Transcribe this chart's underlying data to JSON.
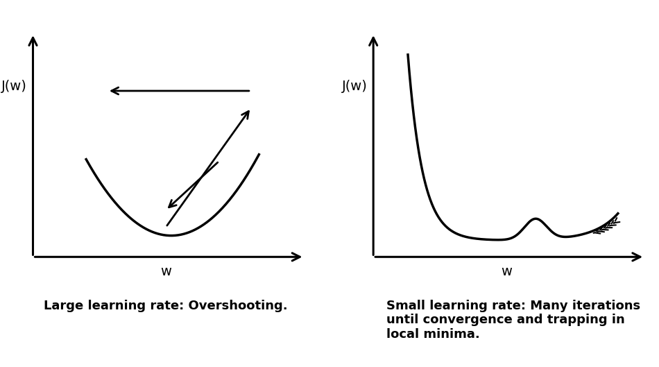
{
  "fig_width": 9.5,
  "fig_height": 5.29,
  "background_color": "#ffffff",
  "left_title": "Large learning rate: Overshooting.",
  "right_title": "Small learning rate: Many iterations\nuntil convergence and trapping in\nlocal minima.",
  "ylabel": "J(w)",
  "xlabel": "w",
  "line_color": "#000000",
  "line_width": 2.5,
  "title_fontsize": 13,
  "label_fontsize": 14
}
